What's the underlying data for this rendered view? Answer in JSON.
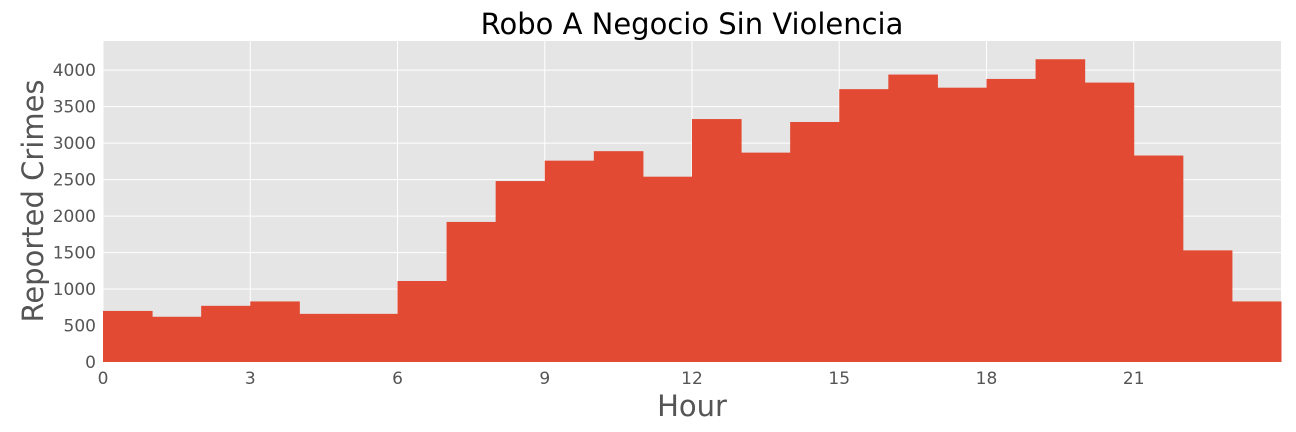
{
  "chart_data": {
    "type": "bar",
    "title": "Robo A Negocio Sin Violencia",
    "xlabel": "Hour",
    "ylabel": "Reported Crimes",
    "x": [
      0,
      1,
      2,
      3,
      4,
      5,
      6,
      7,
      8,
      9,
      10,
      11,
      12,
      13,
      14,
      15,
      16,
      17,
      18,
      19,
      20,
      21,
      22,
      23
    ],
    "values": [
      700,
      620,
      770,
      830,
      660,
      660,
      1110,
      1920,
      2480,
      2760,
      2890,
      2540,
      3330,
      2870,
      3290,
      3740,
      3940,
      3760,
      3880,
      4150,
      3830,
      2830,
      1530,
      830
    ],
    "xlim": [
      0,
      24
    ],
    "ylim": [
      0,
      4400
    ],
    "xticks": [
      0,
      3,
      6,
      9,
      12,
      15,
      18,
      21
    ],
    "yticks": [
      0,
      500,
      1000,
      1500,
      2000,
      2500,
      3000,
      3500,
      4000
    ],
    "grid": true,
    "colors": {
      "bar": "#E24A33",
      "plot_background": "#E5E5E5",
      "grid": "#FFFFFF"
    }
  }
}
